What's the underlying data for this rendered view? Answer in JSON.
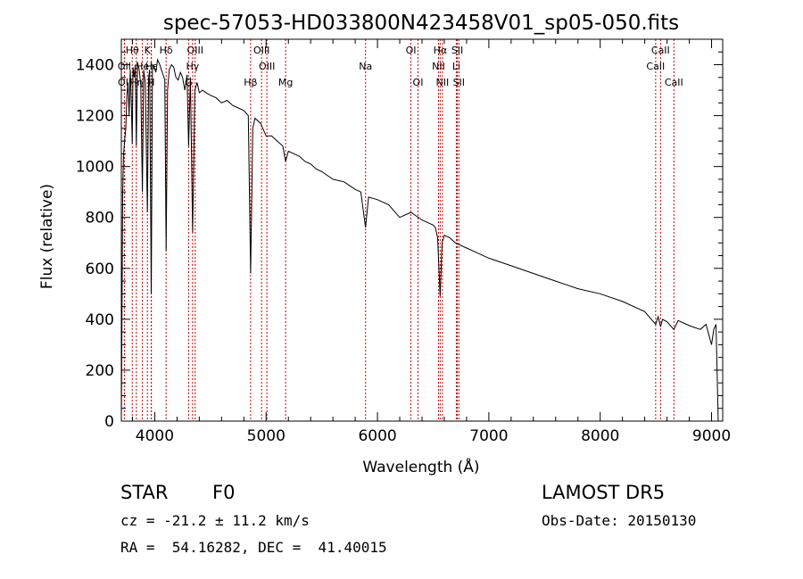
{
  "chart_data": {
    "type": "line",
    "title": "spec-57053-HD033800N423458V01_sp05-050.fits",
    "xlabel": "Wavelength (Å)",
    "ylabel": "Flux (relative)",
    "xlim": [
      3700,
      9100
    ],
    "ylim": [
      0,
      1500
    ],
    "xticks": [
      4000,
      5000,
      6000,
      7000,
      8000,
      9000
    ],
    "yticks": [
      0,
      200,
      400,
      600,
      800,
      1000,
      1200,
      1400
    ],
    "grid": false,
    "line_color": "#000000",
    "marker_color": "#cc0000",
    "spectral_lines": [
      {
        "label": "Hθ",
        "wavelength": 3798,
        "row": 0
      },
      {
        "label": "K",
        "wavelength": 3934,
        "row": 0
      },
      {
        "label": "Hδ",
        "wavelength": 4102,
        "row": 0
      },
      {
        "label": "OIII",
        "wavelength": 4363,
        "row": 0
      },
      {
        "label": "OIII",
        "wavelength": 4959,
        "row": 0
      },
      {
        "label": "OI",
        "wavelength": 6300,
        "row": 0
      },
      {
        "label": "Hα",
        "wavelength": 6563,
        "row": 0
      },
      {
        "label": "SII",
        "wavelength": 6717,
        "row": 0
      },
      {
        "label": "CaII",
        "wavelength": 8542,
        "row": 0
      },
      {
        "label": "OII",
        "wavelength": 3727,
        "row": 1
      },
      {
        "label": "He",
        "wavelength": 3889,
        "row": 1
      },
      {
        "label": "Hε",
        "wavelength": 3970,
        "row": 1
      },
      {
        "label": "Hγ",
        "wavelength": 4340,
        "row": 1
      },
      {
        "label": "OIII",
        "wavelength": 5007,
        "row": 1
      },
      {
        "label": "Na",
        "wavelength": 5893,
        "row": 1
      },
      {
        "label": "NII",
        "wavelength": 6548,
        "row": 1
      },
      {
        "label": "Li",
        "wavelength": 6708,
        "row": 1
      },
      {
        "label": "CaII",
        "wavelength": 8498,
        "row": 1
      },
      {
        "label": "OII",
        "wavelength": 3729,
        "row": 2
      },
      {
        "label": "Hη",
        "wavelength": 3835,
        "row": 2
      },
      {
        "label": "H",
        "wavelength": 3968,
        "row": 2
      },
      {
        "label": "G",
        "wavelength": 4304,
        "row": 2
      },
      {
        "label": "Hβ",
        "wavelength": 4861,
        "row": 2
      },
      {
        "label": "Mg",
        "wavelength": 5175,
        "row": 2
      },
      {
        "label": "OI",
        "wavelength": 6364,
        "row": 2
      },
      {
        "label": "NII",
        "wavelength": 6583,
        "row": 2
      },
      {
        "label": "SII",
        "wavelength": 6731,
        "row": 2
      },
      {
        "label": "CaII",
        "wavelength": 8662,
        "row": 2
      }
    ],
    "series": [
      {
        "x": [
          3700,
          3705,
          3712,
          3720,
          3730,
          3740,
          3750,
          3760,
          3770,
          3780,
          3790,
          3798,
          3805,
          3815,
          3825,
          3835,
          3845,
          3860,
          3875,
          3889,
          3900,
          3915,
          3934,
          3945,
          3955,
          3968,
          3980,
          3995,
          4010,
          4025,
          4045,
          4060,
          4075,
          4090,
          4102,
          4115,
          4130,
          4150,
          4170,
          4190,
          4210,
          4230,
          4250,
          4270,
          4290,
          4304,
          4320,
          4340,
          4360,
          4380,
          4400,
          4430,
          4460,
          4500,
          4550,
          4600,
          4650,
          4700,
          4750,
          4800,
          4840,
          4861,
          4880,
          4900,
          4950,
          5000,
          5050,
          5100,
          5150,
          5175,
          5200,
          5250,
          5300,
          5350,
          5400,
          5450,
          5500,
          5600,
          5700,
          5800,
          5850,
          5893,
          5920,
          6000,
          6100,
          6200,
          6300,
          6400,
          6500,
          6520,
          6540,
          6563,
          6580,
          6600,
          6650,
          6700,
          6800,
          6900,
          7000,
          7200,
          7400,
          7600,
          7800,
          8000,
          8200,
          8400,
          8498,
          8520,
          8542,
          8560,
          8600,
          8662,
          8700,
          8800,
          8900,
          8950,
          9000,
          9020,
          9040,
          9060
        ],
        "y": [
          0,
          350,
          900,
          1050,
          1100,
          1150,
          1280,
          1330,
          1200,
          1380,
          1250,
          1090,
          1390,
          1350,
          1400,
          1080,
          1410,
          1380,
          1320,
          900,
          1380,
          1330,
          820,
          1350,
          1380,
          500,
          1400,
          1390,
          1370,
          1420,
          1400,
          1380,
          1360,
          1340,
          670,
          1300,
          1380,
          1400,
          1390,
          1350,
          1340,
          1370,
          1350,
          1300,
          1360,
          1080,
          1350,
          740,
          1300,
          1330,
          1290,
          1300,
          1290,
          1280,
          1270,
          1250,
          1260,
          1240,
          1230,
          1220,
          1200,
          580,
          1150,
          1190,
          1170,
          1120,
          1120,
          1100,
          1080,
          1020,
          1060,
          1050,
          1040,
          1020,
          1010,
          990,
          980,
          950,
          940,
          910,
          900,
          760,
          880,
          870,
          850,
          800,
          820,
          790,
          770,
          760,
          720,
          490,
          700,
          730,
          720,
          700,
          680,
          660,
          640,
          610,
          580,
          550,
          520,
          500,
          470,
          430,
          380,
          410,
          370,
          400,
          390,
          360,
          395,
          375,
          360,
          380,
          300,
          360,
          380,
          0
        ]
      }
    ]
  },
  "info": {
    "class_label": "STAR",
    "subclass_label": "F0",
    "survey_label": "LAMOST DR5",
    "cz_text": "cz = -21.2 ± 11.2 km/s",
    "obs_date_text": "Obs-Date: 20150130",
    "coords_text": "RA =  54.16282, DEC =  41.40015"
  }
}
